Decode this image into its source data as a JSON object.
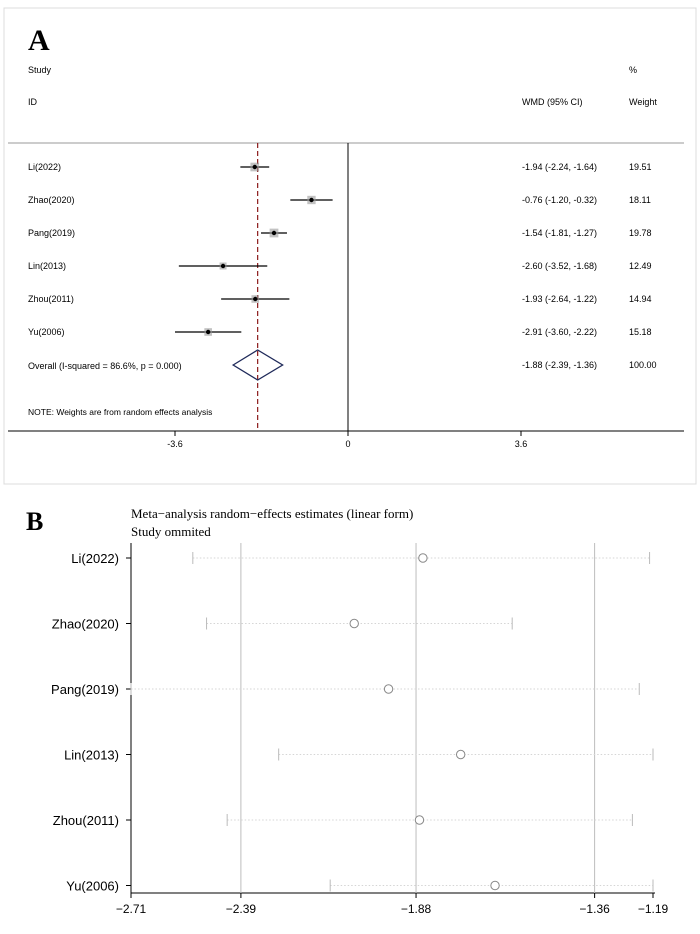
{
  "panel_a": {
    "letter": "A",
    "header": {
      "study": "Study",
      "id": "ID",
      "pct": "%",
      "wmd": "WMD (95% CI)",
      "weight": "Weight"
    },
    "overall_label": "Overall  (I-squared = 86.6%, p = 0.000)",
    "note": "NOTE: Weights are from random effects analysis"
  },
  "panel_b": {
    "letter": "B",
    "title": "Meta−analysis random−effects estimates (linear form)",
    "subtitle": "Study ommited"
  },
  "colors": {
    "line": "#000000",
    "dashed_ref": "#8b1a1a",
    "diamond": "#1f2a5a",
    "grid": "#bdbdbd",
    "marker_fill": "#555555"
  },
  "chart_data": [
    {
      "type": "forest",
      "xlim": [
        -5.4,
        3.9
      ],
      "ticks": [
        -3.6,
        0,
        3.6
      ],
      "tick_labels": [
        "-3.6",
        "0",
        "3.6"
      ],
      "reference_line": 0,
      "overall_line": -1.88,
      "studies": [
        {
          "id": "Li(2022)",
          "wmd": -1.94,
          "lo": -2.24,
          "hi": -1.64,
          "ci_text": "-1.94 (-2.24, -1.64)",
          "weight": "19.51"
        },
        {
          "id": "Zhao(2020)",
          "wmd": -0.76,
          "lo": -1.2,
          "hi": -0.32,
          "ci_text": "-0.76 (-1.20, -0.32)",
          "weight": "18.11"
        },
        {
          "id": "Pang(2019)",
          "wmd": -1.54,
          "lo": -1.81,
          "hi": -1.27,
          "ci_text": "-1.54 (-1.81, -1.27)",
          "weight": "19.78"
        },
        {
          "id": "Lin(2013)",
          "wmd": -2.6,
          "lo": -3.52,
          "hi": -1.68,
          "ci_text": "-2.60 (-3.52, -1.68)",
          "weight": "12.49"
        },
        {
          "id": "Zhou(2011)",
          "wmd": -1.93,
          "lo": -2.64,
          "hi": -1.22,
          "ci_text": "-1.93 (-2.64, -1.22)",
          "weight": "14.94"
        },
        {
          "id": "Yu(2006)",
          "wmd": -2.91,
          "lo": -3.6,
          "hi": -2.22,
          "ci_text": "-2.91 (-3.60, -2.22)",
          "weight": "15.18"
        }
      ],
      "overall": {
        "wmd": -1.88,
        "lo": -2.39,
        "hi": -1.36,
        "ci_text": "-1.88 (-2.39, -1.36)",
        "weight": "100.00"
      }
    },
    {
      "type": "scatter",
      "title": "Meta−analysis random−effects estimates (linear form)",
      "subtitle": "Study ommited",
      "xlim": [
        -2.71,
        -1.19
      ],
      "ticks": [
        -2.71,
        -2.39,
        -1.88,
        -1.36,
        -1.19
      ],
      "tick_labels": [
        "−2.71",
        "−2.39",
        "−1.88",
        "−1.36",
        "−1.19"
      ],
      "vlines": [
        -2.39,
        -1.88,
        -1.36
      ],
      "studies": [
        {
          "label": "Li(2022)",
          "estimate": -1.86,
          "lo": -2.53,
          "hi": -1.2
        },
        {
          "label": "Zhao(2020)",
          "estimate": -2.06,
          "lo": -2.49,
          "hi": -1.6
        },
        {
          "label": "Pang(2019)",
          "estimate": -1.96,
          "lo": -2.71,
          "hi": -1.23
        },
        {
          "label": "Lin(2013)",
          "estimate": -1.75,
          "lo": -2.28,
          "hi": -1.19
        },
        {
          "label": "Zhou(2011)",
          "estimate": -1.87,
          "lo": -2.43,
          "hi": -1.25
        },
        {
          "label": "Yu(2006)",
          "estimate": -1.65,
          "lo": -2.13,
          "hi": -1.19
        }
      ]
    }
  ]
}
